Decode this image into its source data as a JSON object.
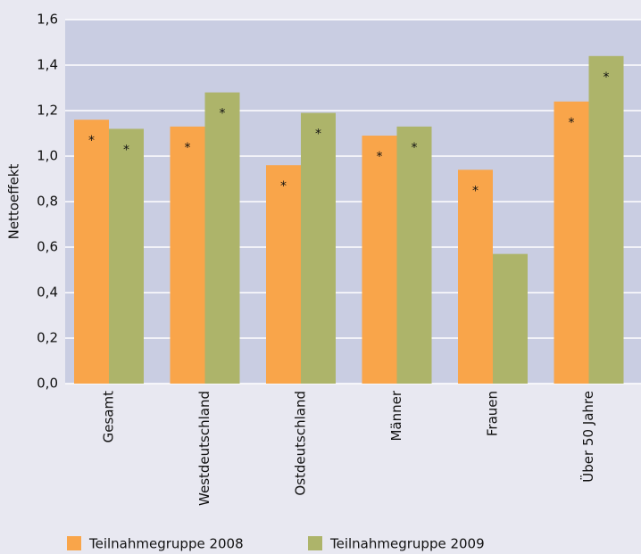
{
  "chart_data": {
    "type": "bar",
    "y_label": "Nettoeffekt",
    "categories": [
      "Gesamt",
      "Westdeutschland",
      "Ostdeutschland",
      "Männer",
      "Frauen",
      "Über 50 Jahre"
    ],
    "series": [
      {
        "name": "Teilnahmegruppe 2008",
        "color": "#f9a54a",
        "values": [
          1.16,
          1.13,
          0.96,
          1.09,
          0.94,
          1.24
        ],
        "markers": [
          "*",
          "*",
          "*",
          "*",
          "*",
          "*"
        ]
      },
      {
        "name": "Teilnahmegruppe 2009",
        "color": "#adb46a",
        "values": [
          1.12,
          1.28,
          1.19,
          1.13,
          0.57,
          1.44
        ],
        "markers": [
          "*",
          "*",
          "*",
          "*",
          null,
          "*"
        ]
      }
    ],
    "ylim": [
      0,
      1.6
    ],
    "yticks": [
      {
        "value": 0,
        "label": "0,0"
      },
      {
        "value": 0.2,
        "label": "0,2"
      },
      {
        "value": 0.4,
        "label": "0,4"
      },
      {
        "value": 0.6,
        "label": "0,6"
      },
      {
        "value": 0.8,
        "label": "0,8"
      },
      {
        "value": 1.0,
        "label": "1,0"
      },
      {
        "value": 1.2,
        "label": "1,2"
      },
      {
        "value": 1.4,
        "label": "1,4"
      },
      {
        "value": 1.6,
        "label": "1,6"
      }
    ],
    "grid": true,
    "legend": "bottom"
  }
}
